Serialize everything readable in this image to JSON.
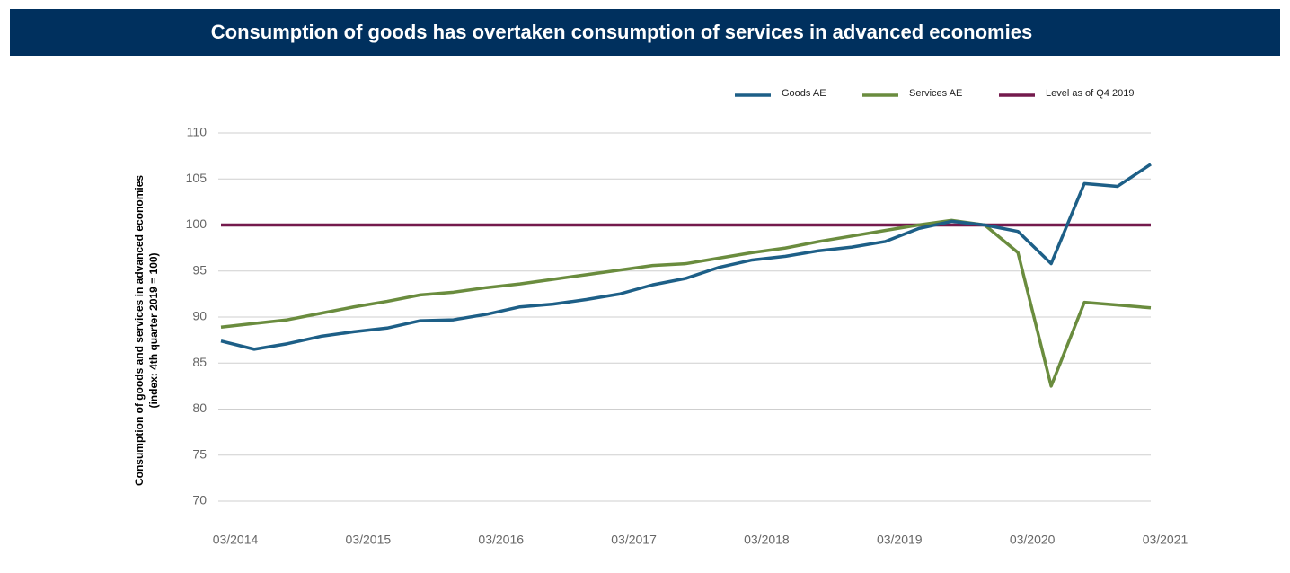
{
  "chart_data": {
    "type": "line",
    "title": "Consumption of goods has overtaken consumption of services in advanced economies",
    "y_label": [
      "Consumption of goods and services in advanced economies",
      "(index: 4th quarter 2019 = 100)"
    ],
    "categories": [
      "03/2014",
      null,
      null,
      null,
      "03/2015",
      null,
      null,
      null,
      "03/2016",
      null,
      null,
      null,
      "03/2017",
      null,
      null,
      null,
      "03/2018",
      null,
      null,
      null,
      "03/2019",
      null,
      null,
      null,
      "03/2020",
      null,
      null,
      null,
      "03/2021"
    ],
    "series": [
      {
        "name": "Goods AE",
        "color": "#1d5f87",
        "values": [
          87.4,
          86.5,
          87.1,
          87.9,
          88.4,
          88.8,
          89.6,
          89.7,
          90.3,
          91.1,
          91.4,
          91.9,
          92.5,
          93.5,
          94.2,
          95.4,
          96.2,
          96.6,
          97.2,
          97.6,
          98.2,
          99.6,
          100.4,
          100.0,
          99.3,
          95.8,
          104.5,
          104.2,
          106.6
        ]
      },
      {
        "name": "Services AE",
        "color": "#6a8c3e",
        "values": [
          88.9,
          89.3,
          89.7,
          90.4,
          91.1,
          91.7,
          92.4,
          92.7,
          93.2,
          93.6,
          94.1,
          94.6,
          95.1,
          95.6,
          95.8,
          96.4,
          97.0,
          97.5,
          98.2,
          98.8,
          99.4,
          100.0,
          100.5,
          100.0,
          97.0,
          82.5,
          91.6,
          91.3,
          91.0
        ]
      },
      {
        "name": "Level as of Q4 2019",
        "color": "#741a4d",
        "values": [
          100,
          100,
          100,
          100,
          100,
          100,
          100,
          100,
          100,
          100,
          100,
          100,
          100,
          100,
          100,
          100,
          100,
          100,
          100,
          100,
          100,
          100,
          100,
          100,
          100,
          100,
          100,
          100,
          100
        ]
      }
    ],
    "ylim": [
      70,
      110
    ],
    "yticks": [
      70,
      75,
      80,
      85,
      90,
      95,
      100,
      105,
      110
    ],
    "grid": true,
    "legend": "top-right"
  }
}
